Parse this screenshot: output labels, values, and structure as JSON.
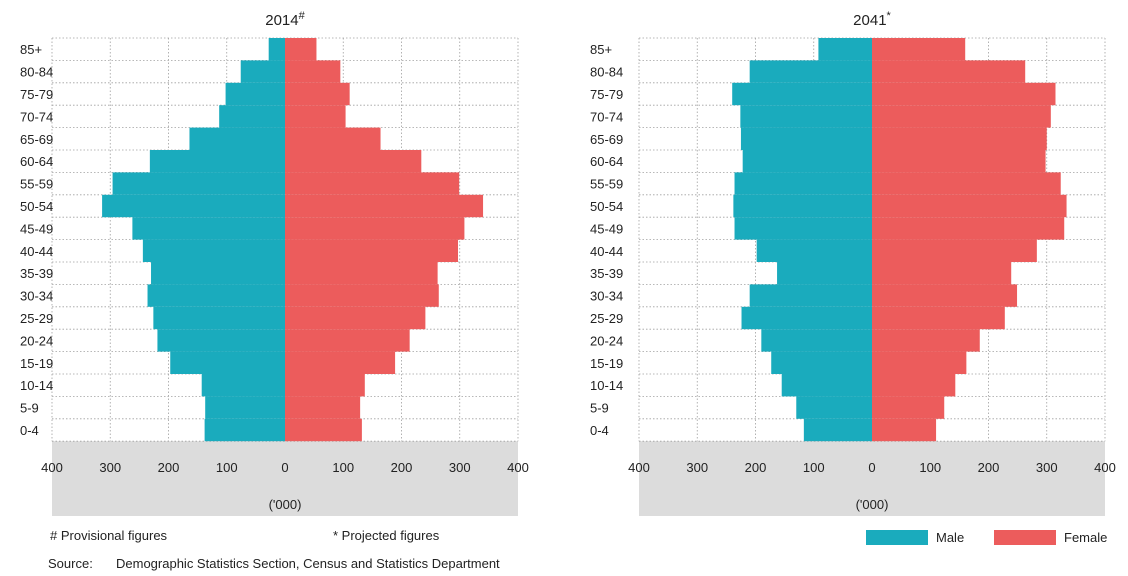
{
  "chart_data": [
    {
      "type": "bar",
      "title": "2014",
      "title_mark": "#",
      "categories": [
        "0-4",
        "5-9",
        "10-14",
        "15-19",
        "20-24",
        "25-29",
        "30-34",
        "35-39",
        "40-44",
        "45-49",
        "50-54",
        "55-59",
        "60-64",
        "65-69",
        "70-74",
        "75-79",
        "80-84",
        "85+"
      ],
      "series": [
        {
          "name": "Male",
          "values": [
            138,
            137,
            143,
            197,
            219,
            226,
            236,
            230,
            244,
            262,
            314,
            296,
            232,
            164,
            113,
            102,
            76,
            28
          ]
        },
        {
          "name": "Female",
          "values": [
            132,
            129,
            137,
            189,
            214,
            241,
            264,
            262,
            297,
            308,
            340,
            299,
            234,
            164,
            104,
            111,
            95,
            54
          ]
        }
      ],
      "xlabel": "('000)",
      "xlim": [
        -400,
        400
      ],
      "ticks": [
        "400",
        "300",
        "200",
        "100",
        "0",
        "100",
        "200",
        "300",
        "400"
      ]
    },
    {
      "type": "bar",
      "title": "2041",
      "title_mark": "*",
      "categories": [
        "0-4",
        "5-9",
        "10-14",
        "15-19",
        "20-24",
        "25-29",
        "30-34",
        "35-39",
        "40-44",
        "45-49",
        "50-54",
        "55-59",
        "60-64",
        "65-69",
        "70-74",
        "75-79",
        "80-84",
        "85+"
      ],
      "series": [
        {
          "name": "Male",
          "values": [
            117,
            130,
            155,
            173,
            190,
            224,
            210,
            163,
            198,
            236,
            238,
            236,
            222,
            225,
            226,
            240,
            210,
            92
          ]
        },
        {
          "name": "Female",
          "values": [
            110,
            124,
            143,
            162,
            185,
            228,
            249,
            239,
            283,
            330,
            334,
            324,
            298,
            300,
            307,
            315,
            263,
            160
          ]
        }
      ],
      "xlabel": "('000)",
      "xlim": [
        -400,
        400
      ],
      "ticks": [
        "400",
        "300",
        "200",
        "100",
        "0",
        "100",
        "200",
        "300",
        "400"
      ]
    }
  ],
  "legend": {
    "male_label": "Male",
    "female_label": "Female",
    "male_color": "#1aabbd",
    "female_color": "#ec5c5c"
  },
  "footnotes": {
    "provisional": "# Provisional figures",
    "projected": "* Projected figures"
  },
  "source": {
    "label": "Source:",
    "text": "Demographic Statistics Section, Census and Statistics Department"
  },
  "colors": {
    "axis_band": "#dcdcdc",
    "gridline": "#a0a0a0"
  }
}
